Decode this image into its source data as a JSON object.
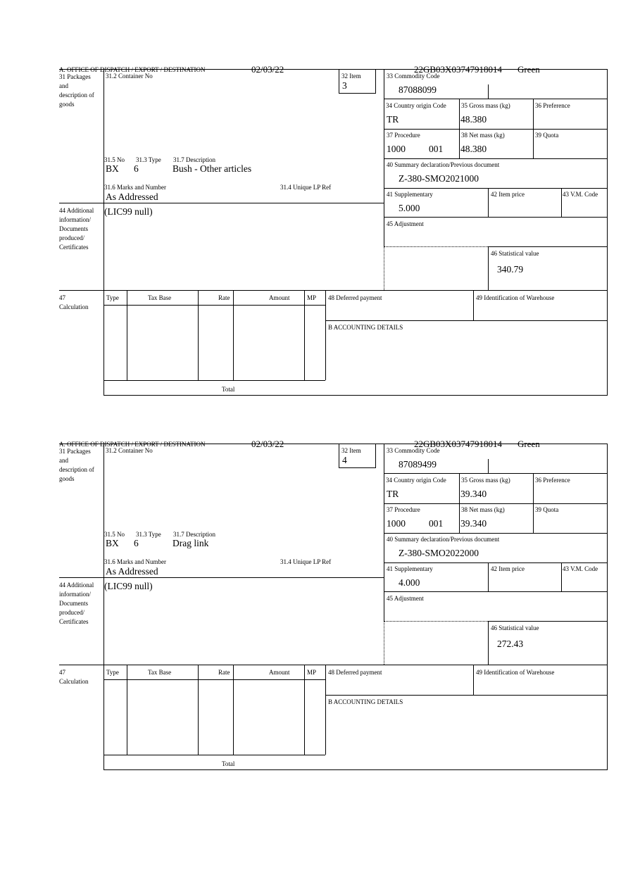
{
  "labels": {
    "office": "A.  OFFICE OF DISPATCH / EXPORT / DESTINATION",
    "box31": "31 Packages and description of goods",
    "container": "31.2 Container No",
    "item": "32 Item",
    "no": "31.5 No",
    "type": "31.3 Type",
    "description": "31.7 Description",
    "marks": "31.6 Marks and Number",
    "unique_ref": "31.4 Unique LP Ref",
    "box44": "44 Additional information/ Documents produced/ Certificates",
    "commodity": "33 Commodity Code",
    "country": "34 Country origin Code",
    "gross": "35 Gross mass (kg)",
    "preference": "36 Preference",
    "procedure": "37 Procedure",
    "net": "38 Net mass (kg)",
    "quota": "39 Quota",
    "summary": "40 Summary declaration/Previous document",
    "supplementary": "41 Supplementary",
    "item_price": "42 Item price",
    "vm_code": "43 V.M. Code",
    "adjustment": "45 Adjustment",
    "statistical": "46 Statistical value",
    "box47": "47 Calculation",
    "calc_type": "Type",
    "calc_tax_base": "Tax Base",
    "calc_rate": "Rate",
    "calc_amount": "Amount",
    "calc_mp": "MP",
    "total": "Total",
    "deferred": "48 Deferred payment",
    "warehouse": "49 Identification of Warehouse",
    "accounting": "B ACCOUNTING DETAILS"
  },
  "forms": [
    {
      "date": "02/03/22",
      "reference": "22GB03X03747918014",
      "route": "Green",
      "item": "3",
      "no": "BX",
      "type": "6",
      "description": "Bush - Other articles",
      "marks": "As Addressed",
      "additional_info": "(LIC99 null)",
      "commodity": "87088099",
      "country": "TR",
      "gross": "48.380",
      "procedure": "1000",
      "procedure_add": "001",
      "net": "48.380",
      "summary": "Z-380-SMO2021000",
      "supplementary": "5.000",
      "statistical": "340.79"
    },
    {
      "date": "02/03/22",
      "reference": "22GB03X03747918014",
      "route": "Green",
      "item": "4",
      "no": "BX",
      "type": "6",
      "description": "Drag link",
      "marks": "As Addressed",
      "additional_info": "(LIC99 null)",
      "commodity": "87089499",
      "country": "TR",
      "gross": "39.340",
      "procedure": "1000",
      "procedure_add": "001",
      "net": "39.340",
      "summary": "Z-380-SMO2022000",
      "supplementary": "4.000",
      "statistical": "272.43"
    }
  ]
}
